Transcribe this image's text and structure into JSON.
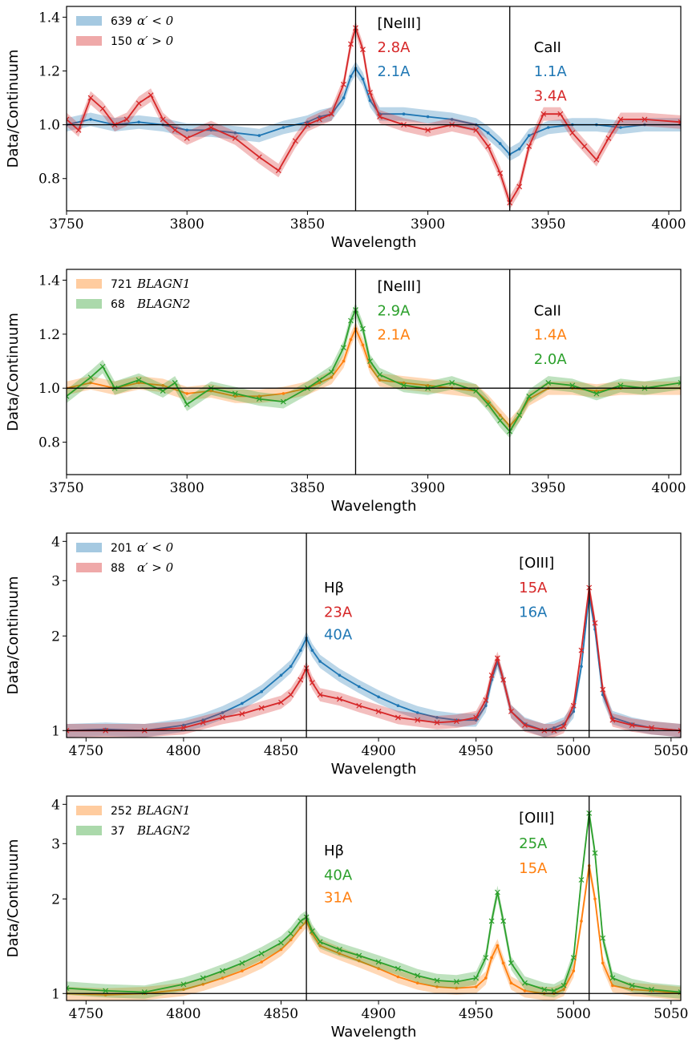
{
  "chart_data": [
    {
      "type": "line",
      "panel": 1,
      "xlabel": "Wavelength",
      "ylabel": "Data/Continuum",
      "xlim": [
        3750,
        4005
      ],
      "ylim": [
        0.68,
        1.44
      ],
      "yscale": "linear",
      "xticks": [
        3750,
        3800,
        3850,
        3900,
        3950,
        4000
      ],
      "yticks": [
        0.8,
        1.0,
        1.2,
        1.4
      ],
      "tick_labels_x": [
        "3750",
        "3800",
        "3850",
        "3900",
        "3950",
        "4000"
      ],
      "tick_labels_y": [
        "0.8",
        "1.0",
        "1.2",
        "1.4"
      ],
      "grid": false,
      "legend": "top-left",
      "hline": 1.0,
      "vlines": [
        3870,
        3934
      ],
      "line_labels": [
        {
          "text": "[NeIII]",
          "x": 3879,
          "y": 1.36,
          "color": "#000000"
        },
        {
          "text": "2.8A",
          "x": 3879,
          "y": 1.27,
          "color": "#d62728"
        },
        {
          "text": "2.1A",
          "x": 3879,
          "y": 1.18,
          "color": "#1f77b4"
        },
        {
          "text": "CaII",
          "x": 3944,
          "y": 1.27,
          "color": "#000000"
        },
        {
          "text": "1.1A",
          "x": 3944,
          "y": 1.18,
          "color": "#1f77b4"
        },
        {
          "text": "3.4A",
          "x": 3944,
          "y": 1.09,
          "color": "#d62728"
        }
      ],
      "series": [
        {
          "count": "639",
          "label": "α′ < 0",
          "color": "#1f77b4",
          "x": [
            3750,
            3760,
            3770,
            3780,
            3790,
            3800,
            3810,
            3820,
            3830,
            3840,
            3850,
            3855,
            3860,
            3865,
            3868,
            3870,
            3873,
            3876,
            3880,
            3890,
            3900,
            3910,
            3920,
            3925,
            3930,
            3934,
            3938,
            3942,
            3950,
            3960,
            3970,
            3980,
            3990,
            4005
          ],
          "y": [
            1.0,
            1.02,
            1.0,
            1.01,
            1.0,
            0.98,
            0.98,
            0.97,
            0.96,
            0.99,
            1.01,
            1.03,
            1.04,
            1.1,
            1.18,
            1.21,
            1.17,
            1.09,
            1.04,
            1.04,
            1.03,
            1.02,
            1.0,
            0.97,
            0.93,
            0.89,
            0.91,
            0.96,
            0.99,
            1.0,
            1.0,
            0.99,
            1.0,
            1.0
          ]
        },
        {
          "count": "150",
          "label": "α′ > 0",
          "color": "#d62728",
          "x": [
            3750,
            3755,
            3760,
            3765,
            3770,
            3775,
            3780,
            3785,
            3790,
            3795,
            3800,
            3810,
            3820,
            3830,
            3838,
            3845,
            3850,
            3855,
            3860,
            3865,
            3868,
            3870,
            3873,
            3876,
            3880,
            3890,
            3900,
            3910,
            3920,
            3925,
            3930,
            3934,
            3938,
            3942,
            3948,
            3955,
            3960,
            3965,
            3970,
            3975,
            3980,
            3990,
            4005
          ],
          "y": [
            1.02,
            0.98,
            1.1,
            1.06,
            1.0,
            1.02,
            1.08,
            1.11,
            1.02,
            0.98,
            0.95,
            0.99,
            0.95,
            0.88,
            0.83,
            0.94,
            1.0,
            1.02,
            1.04,
            1.15,
            1.3,
            1.36,
            1.28,
            1.12,
            1.03,
            1.0,
            0.98,
            1.0,
            0.98,
            0.92,
            0.82,
            0.71,
            0.77,
            0.92,
            1.04,
            1.04,
            0.97,
            0.92,
            0.87,
            0.95,
            1.02,
            1.02,
            1.01
          ]
        }
      ]
    },
    {
      "type": "line",
      "panel": 2,
      "xlabel": "Wavelength",
      "ylabel": "Data/Continuum",
      "xlim": [
        3750,
        4005
      ],
      "ylim": [
        0.68,
        1.44
      ],
      "yscale": "linear",
      "xticks": [
        3750,
        3800,
        3850,
        3900,
        3950,
        4000
      ],
      "yticks": [
        0.8,
        1.0,
        1.2,
        1.4
      ],
      "tick_labels_x": [
        "3750",
        "3800",
        "3850",
        "3900",
        "3950",
        "4000"
      ],
      "tick_labels_y": [
        "0.8",
        "1.0",
        "1.2",
        "1.4"
      ],
      "grid": false,
      "legend": "top-left",
      "hline": 1.0,
      "vlines": [
        3870,
        3934
      ],
      "line_labels": [
        {
          "text": "[NeIII]",
          "x": 3879,
          "y": 1.36,
          "color": "#000000"
        },
        {
          "text": "2.9A",
          "x": 3879,
          "y": 1.27,
          "color": "#2ca02c"
        },
        {
          "text": "2.1A",
          "x": 3879,
          "y": 1.18,
          "color": "#ff7f0e"
        },
        {
          "text": "CaII",
          "x": 3944,
          "y": 1.27,
          "color": "#000000"
        },
        {
          "text": "1.4A",
          "x": 3944,
          "y": 1.18,
          "color": "#ff7f0e"
        },
        {
          "text": "2.0A",
          "x": 3944,
          "y": 1.09,
          "color": "#2ca02c"
        }
      ],
      "series": [
        {
          "count": "721",
          "label": "BLAGN1",
          "color": "#ff7f0e",
          "x": [
            3750,
            3760,
            3770,
            3780,
            3790,
            3800,
            3810,
            3820,
            3830,
            3840,
            3850,
            3855,
            3860,
            3865,
            3868,
            3870,
            3873,
            3876,
            3880,
            3890,
            3900,
            3910,
            3920,
            3925,
            3930,
            3934,
            3938,
            3942,
            3950,
            3960,
            3970,
            3980,
            3990,
            4005
          ],
          "y": [
            1.0,
            1.02,
            1.0,
            1.02,
            1.01,
            0.98,
            0.99,
            0.97,
            0.97,
            0.98,
            1.0,
            1.02,
            1.04,
            1.1,
            1.18,
            1.22,
            1.16,
            1.08,
            1.03,
            1.02,
            1.01,
            1.0,
            0.99,
            0.95,
            0.9,
            0.86,
            0.9,
            0.96,
            1.0,
            1.0,
            0.99,
            1.0,
            1.0,
            1.0
          ]
        },
        {
          "count": "68",
          "label": "BLAGN2",
          "color": "#2ca02c",
          "x": [
            3750,
            3760,
            3765,
            3770,
            3780,
            3790,
            3795,
            3800,
            3810,
            3820,
            3830,
            3840,
            3850,
            3855,
            3860,
            3865,
            3868,
            3870,
            3873,
            3876,
            3880,
            3890,
            3900,
            3910,
            3920,
            3925,
            3930,
            3934,
            3938,
            3942,
            3950,
            3960,
            3970,
            3980,
            3990,
            4005
          ],
          "y": [
            0.97,
            1.04,
            1.08,
            1.0,
            1.03,
            0.99,
            1.02,
            0.94,
            1.0,
            0.98,
            0.96,
            0.95,
            1.0,
            1.03,
            1.06,
            1.15,
            1.25,
            1.29,
            1.22,
            1.1,
            1.05,
            1.01,
            1.0,
            1.02,
            0.99,
            0.94,
            0.88,
            0.84,
            0.9,
            0.97,
            1.02,
            1.01,
            0.98,
            1.01,
            1.0,
            1.02
          ]
        }
      ]
    },
    {
      "type": "line",
      "panel": 3,
      "xlabel": "Wavelength",
      "ylabel": "Data/Continuum",
      "xlim": [
        4740,
        5055
      ],
      "ylim": [
        0.95,
        4.25
      ],
      "yscale": "log",
      "xticks": [
        4750,
        4800,
        4850,
        4900,
        4950,
        5000,
        5050
      ],
      "yticks": [
        1,
        2,
        3,
        4
      ],
      "tick_labels_x": [
        "4750",
        "4800",
        "4850",
        "4900",
        "4950",
        "5000",
        "5050"
      ],
      "tick_labels_y": [
        "1",
        "2",
        "3",
        "4"
      ],
      "grid": false,
      "legend": "top-left",
      "hline": 1.0,
      "vlines": [
        4863,
        5008
      ],
      "line_labels": [
        {
          "text": "Hβ",
          "x": 4872,
          "y": 2.75,
          "color": "#000000"
        },
        {
          "text": "23A",
          "x": 4872,
          "y": 2.3,
          "color": "#d62728"
        },
        {
          "text": "40A",
          "x": 4872,
          "y": 1.95,
          "color": "#1f77b4"
        },
        {
          "text": "[OIII]",
          "x": 4972,
          "y": 3.3,
          "color": "#000000"
        },
        {
          "text": "15A",
          "x": 4972,
          "y": 2.75,
          "color": "#d62728"
        },
        {
          "text": "16A",
          "x": 4972,
          "y": 2.3,
          "color": "#1f77b4"
        }
      ],
      "series": [
        {
          "count": "201",
          "label": "α′ < 0",
          "color": "#1f77b4",
          "x": [
            4740,
            4760,
            4780,
            4800,
            4810,
            4820,
            4830,
            4840,
            4850,
            4855,
            4860,
            4863,
            4866,
            4870,
            4880,
            4890,
            4900,
            4910,
            4920,
            4930,
            4940,
            4950,
            4955,
            4958,
            4961,
            4964,
            4968,
            4975,
            4985,
            4990,
            4995,
            5000,
            5004,
            5008,
            5011,
            5015,
            5020,
            5030,
            5040,
            5055
          ],
          "y": [
            1.0,
            1.01,
            1.0,
            1.04,
            1.08,
            1.14,
            1.22,
            1.33,
            1.5,
            1.6,
            1.8,
            1.97,
            1.8,
            1.66,
            1.5,
            1.38,
            1.28,
            1.2,
            1.14,
            1.1,
            1.08,
            1.08,
            1.2,
            1.45,
            1.65,
            1.45,
            1.15,
            1.05,
            1.0,
            1.02,
            1.05,
            1.15,
            1.6,
            2.7,
            2.1,
            1.3,
            1.1,
            1.05,
            1.02,
            1.0
          ]
        },
        {
          "count": "88",
          "label": "α′ > 0",
          "color": "#d62728",
          "x": [
            4740,
            4760,
            4780,
            4800,
            4810,
            4820,
            4830,
            4840,
            4850,
            4855,
            4860,
            4863,
            4866,
            4870,
            4880,
            4890,
            4900,
            4910,
            4920,
            4930,
            4940,
            4950,
            4955,
            4958,
            4961,
            4964,
            4968,
            4975,
            4985,
            4990,
            4995,
            5000,
            5004,
            5008,
            5011,
            5015,
            5020,
            5030,
            5040,
            5055
          ],
          "y": [
            1.0,
            1.0,
            1.0,
            1.02,
            1.06,
            1.1,
            1.13,
            1.18,
            1.23,
            1.3,
            1.45,
            1.58,
            1.42,
            1.3,
            1.26,
            1.2,
            1.15,
            1.1,
            1.08,
            1.06,
            1.07,
            1.1,
            1.25,
            1.5,
            1.7,
            1.45,
            1.15,
            1.04,
            1.0,
            1.0,
            1.03,
            1.2,
            1.8,
            2.85,
            2.2,
            1.35,
            1.08,
            1.04,
            1.02,
            1.0
          ]
        }
      ]
    },
    {
      "type": "line",
      "panel": 4,
      "xlabel": "Wavelength",
      "ylabel": "Data/Continuum",
      "xlim": [
        4740,
        5055
      ],
      "ylim": [
        0.95,
        4.25
      ],
      "yscale": "log",
      "xticks": [
        4750,
        4800,
        4850,
        4900,
        4950,
        5000,
        5050
      ],
      "yticks": [
        1,
        2,
        3,
        4
      ],
      "tick_labels_x": [
        "4750",
        "4800",
        "4850",
        "4900",
        "4950",
        "5000",
        "5050"
      ],
      "tick_labels_y": [
        "1",
        "2",
        "3",
        "4"
      ],
      "grid": false,
      "legend": "top-left",
      "hline": 1.0,
      "vlines": [
        4863,
        5008
      ],
      "line_labels": [
        {
          "text": "Hβ",
          "x": 4872,
          "y": 2.75,
          "color": "#000000"
        },
        {
          "text": "40A",
          "x": 4872,
          "y": 2.3,
          "color": "#2ca02c"
        },
        {
          "text": "31A",
          "x": 4872,
          "y": 1.95,
          "color": "#ff7f0e"
        },
        {
          "text": "[OIII]",
          "x": 4972,
          "y": 3.5,
          "color": "#000000"
        },
        {
          "text": "25A",
          "x": 4972,
          "y": 2.9,
          "color": "#2ca02c"
        },
        {
          "text": "15A",
          "x": 4972,
          "y": 2.42,
          "color": "#ff7f0e"
        }
      ],
      "series": [
        {
          "count": "252",
          "label": "BLAGN1",
          "color": "#ff7f0e",
          "x": [
            4740,
            4760,
            4780,
            4800,
            4810,
            4820,
            4830,
            4840,
            4850,
            4855,
            4860,
            4863,
            4866,
            4870,
            4880,
            4890,
            4900,
            4910,
            4920,
            4930,
            4940,
            4950,
            4955,
            4958,
            4961,
            4964,
            4968,
            4975,
            4985,
            4990,
            4995,
            5000,
            5004,
            5008,
            5011,
            5015,
            5020,
            5030,
            5040,
            5055
          ],
          "y": [
            1.0,
            0.99,
            1.0,
            1.03,
            1.07,
            1.12,
            1.18,
            1.26,
            1.38,
            1.48,
            1.62,
            1.7,
            1.55,
            1.42,
            1.34,
            1.27,
            1.2,
            1.13,
            1.08,
            1.05,
            1.04,
            1.05,
            1.12,
            1.3,
            1.42,
            1.25,
            1.08,
            1.02,
            1.0,
            1.0,
            1.03,
            1.18,
            1.7,
            2.55,
            2.0,
            1.25,
            1.06,
            1.03,
            1.02,
            1.0
          ]
        },
        {
          "count": "37",
          "label": "BLAGN2",
          "color": "#2ca02c",
          "x": [
            4740,
            4760,
            4780,
            4800,
            4810,
            4820,
            4830,
            4840,
            4850,
            4855,
            4860,
            4863,
            4866,
            4870,
            4880,
            4890,
            4900,
            4910,
            4920,
            4930,
            4940,
            4950,
            4955,
            4958,
            4961,
            4964,
            4968,
            4975,
            4985,
            4990,
            4995,
            5000,
            5004,
            5008,
            5011,
            5015,
            5020,
            5030,
            5040,
            5055
          ],
          "y": [
            1.04,
            1.02,
            1.01,
            1.07,
            1.12,
            1.18,
            1.25,
            1.34,
            1.45,
            1.55,
            1.7,
            1.75,
            1.58,
            1.46,
            1.38,
            1.32,
            1.26,
            1.2,
            1.14,
            1.1,
            1.09,
            1.12,
            1.3,
            1.7,
            2.1,
            1.7,
            1.25,
            1.08,
            1.03,
            1.02,
            1.06,
            1.3,
            2.3,
            3.75,
            2.8,
            1.5,
            1.12,
            1.06,
            1.03,
            1.01
          ]
        }
      ]
    }
  ]
}
